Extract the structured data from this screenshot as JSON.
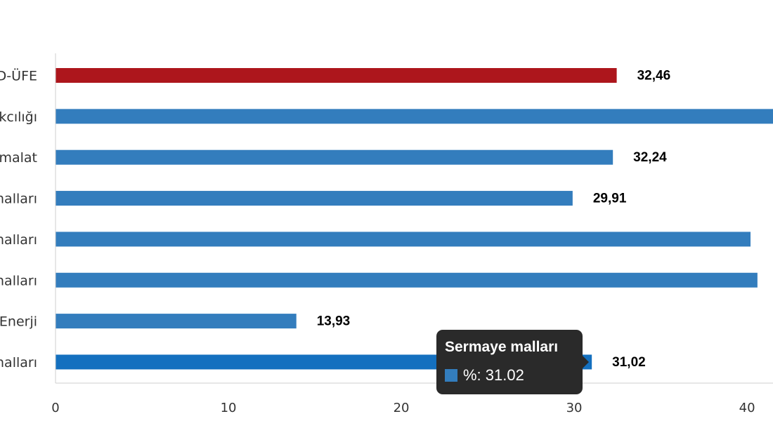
{
  "chart_data": {
    "type": "bar",
    "orientation": "horizontal",
    "categories": [
      "D-ÜFE",
      "Madencilik ve taş ocakçılığı",
      "İmalat",
      "Dayanıklı tüketim malları",
      "Dayanıksız tüketim malları",
      "Ara malları",
      "Enerji",
      "Sermaye malları"
    ],
    "visible_category_labels": [
      "D-ÜFE",
      "kcılığı",
      "malat",
      "malları",
      "malları",
      "malları",
      "Enerji",
      "malları"
    ],
    "series": [
      {
        "values": [
          32.46,
          41.8,
          32.24,
          29.91,
          40.2,
          40.6,
          13.93,
          31.02
        ]
      }
    ],
    "data_labels": [
      "32,46",
      "",
      "32,24",
      "29,91",
      "",
      "",
      "13,93",
      "31,02"
    ],
    "bar_colors": [
      "#ad161c",
      "#337dbd",
      "#337dbd",
      "#337dbd",
      "#337dbd",
      "#337dbd",
      "#337dbd",
      "#1470bf"
    ],
    "highlighted_index": 7,
    "xlim": [
      0,
      41.5
    ],
    "xticks": [
      0,
      10,
      20,
      30,
      40
    ],
    "xtick_labels": [
      "0",
      "10",
      "20",
      "30",
      "40"
    ],
    "grid": false,
    "legend": "none"
  },
  "tooltip": {
    "title": "Sermaye malları",
    "text": "%: 31.02",
    "swatch_color": "#337dbd"
  }
}
